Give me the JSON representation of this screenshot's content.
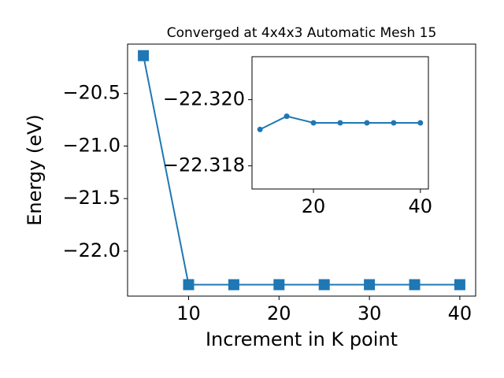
{
  "chart_data": [
    {
      "type": "line",
      "title": "Converged at 4x4x3 Automatic Mesh 15",
      "x_label": "Increment in K point",
      "y_label": "Energy (eV)",
      "x": [
        5,
        10,
        15,
        20,
        25,
        30,
        35,
        40
      ],
      "series": [
        {
          "color": "#1f77b4",
          "marker": "square",
          "values": [
            -20.14,
            -22.3191,
            -22.3195,
            -22.3193,
            -22.3193,
            -22.3193,
            -22.3193,
            -22.3193
          ]
        }
      ],
      "xlim": [
        3.25,
        41.75
      ],
      "xticks": [
        10,
        20,
        30,
        40
      ],
      "ylim": [
        -22.428,
        -20.03
      ],
      "yticks": [
        {
          "value": -22.0,
          "label": "−22.0"
        },
        {
          "value": -21.5,
          "label": "−21.5"
        },
        {
          "value": -21.0,
          "label": "−21.0"
        },
        {
          "value": -20.5,
          "label": "−20.5"
        }
      ]
    },
    {
      "type": "line",
      "x": [
        10,
        15,
        20,
        25,
        30,
        35,
        40
      ],
      "series": [
        {
          "color": "#1f77b4",
          "marker": "circle",
          "values": [
            -22.3191,
            -22.3195,
            -22.3193,
            -22.3193,
            -22.3193,
            -22.3193,
            -22.3193
          ]
        }
      ],
      "xlim": [
        8.5,
        41.5
      ],
      "xticks": [
        20,
        40
      ],
      "ylim": [
        -22.3173,
        -22.3213
      ],
      "yticks": [
        {
          "value": -22.318,
          "label": "−22.318"
        },
        {
          "value": -22.32,
          "label": "−22.320"
        }
      ]
    }
  ]
}
